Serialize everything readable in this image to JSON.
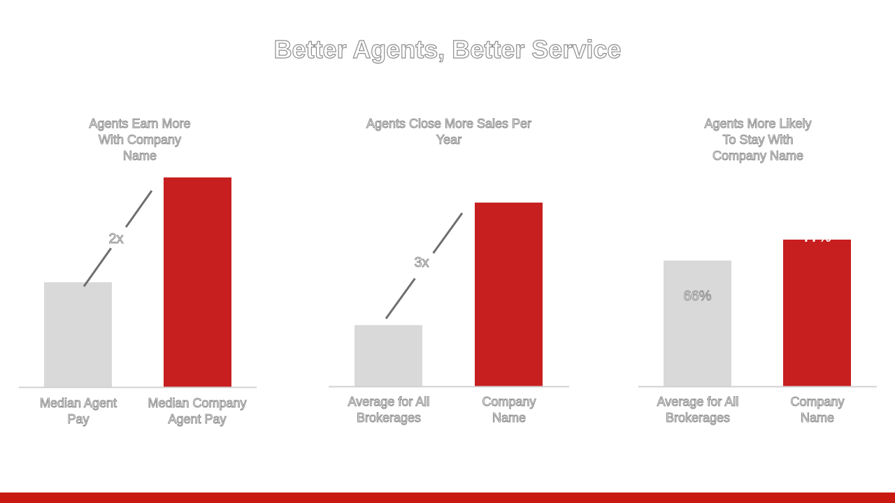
{
  "slide": {
    "title": "Better Agents, Better Service"
  },
  "colors": {
    "grey_bar": "#d9d9d9",
    "red_bar": "#c71f1f",
    "axis": "#d0d0d0",
    "arrow": "#6e6e6e",
    "bottom_bar": "#c8180f"
  },
  "chart_data": [
    {
      "type": "bar",
      "title": "Agents Earn More\nWith Company\nName",
      "categories": [
        "Median Agent\nPay",
        "Median Company\nAgent Pay"
      ],
      "values": [
        1,
        2
      ],
      "ylim": [
        0,
        2
      ],
      "annotation": "2x",
      "data_labels": [
        "",
        ""
      ]
    },
    {
      "type": "bar",
      "title": "Agents Close More Sales Per\nYear",
      "categories": [
        "Average for All\nBrokerages",
        "Company\nName"
      ],
      "values": [
        1,
        3
      ],
      "ylim": [
        0,
        3
      ],
      "annotation": "3x",
      "data_labels": [
        "",
        ""
      ]
    },
    {
      "type": "bar",
      "title": "Agents More Likely\nTo Stay With\nCompany Name",
      "categories": [
        "Average for All\nBrokerages",
        "Company\nName"
      ],
      "values": [
        66,
        77
      ],
      "ylim": [
        0,
        88
      ],
      "annotation": "",
      "data_labels": [
        "66%",
        "77%"
      ]
    }
  ]
}
